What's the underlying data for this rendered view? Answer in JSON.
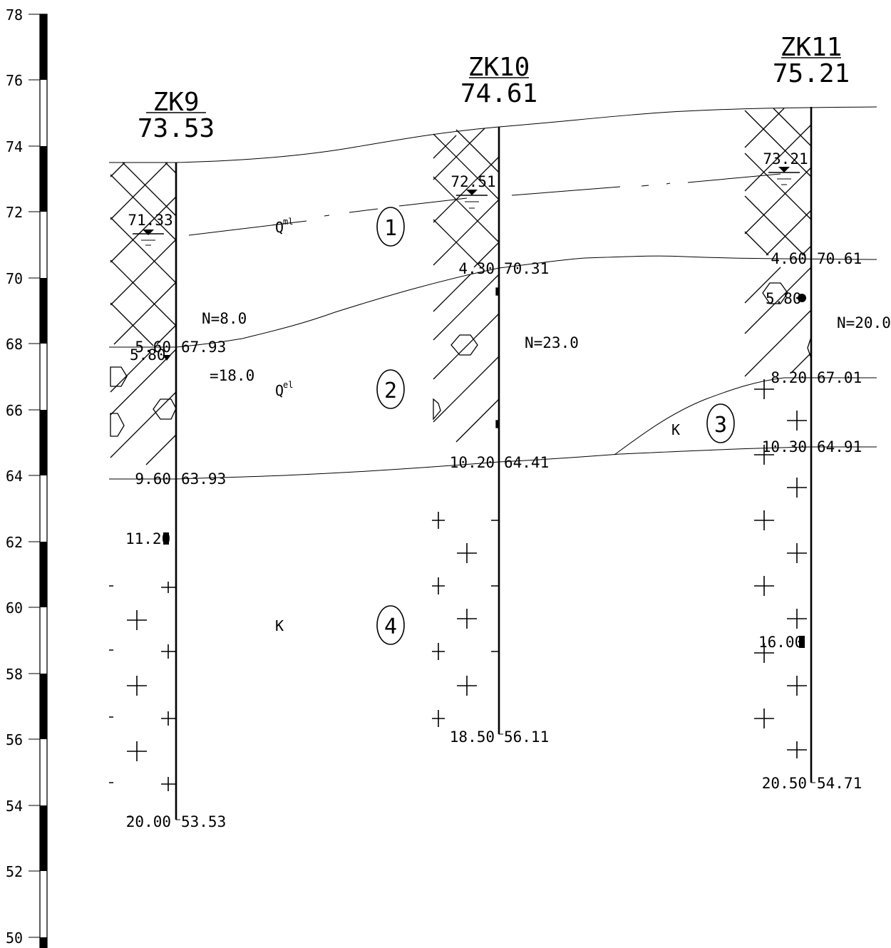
{
  "scale": {
    "ticks": [
      "78",
      "76",
      "74",
      "72",
      "70",
      "68",
      "66",
      "64",
      "62",
      "60",
      "58",
      "56",
      "54",
      "52",
      "50"
    ]
  },
  "boreholes": [
    {
      "id": "ZK9",
      "elevation": "73.53",
      "layers": [
        {
          "depth": "5.60",
          "elev": "67.93"
        },
        {
          "depth": "9.60",
          "elev": "63.93"
        },
        {
          "depth": "20.00",
          "elev": "53.53"
        }
      ],
      "water_level": "71.33",
      "samples": [
        "5.80",
        "11.20"
      ]
    },
    {
      "id": "ZK10",
      "elevation": "74.61",
      "layers": [
        {
          "depth": "4.30",
          "elev": "70.31"
        },
        {
          "depth": "10.20",
          "elev": "64.41"
        },
        {
          "depth": "18.50",
          "elev": "56.11"
        }
      ],
      "water_level": "72.51"
    },
    {
      "id": "ZK11",
      "elevation": "75.21",
      "layers": [
        {
          "depth": "4.60",
          "elev": "70.61"
        },
        {
          "depth": "8.20",
          "elev": "67.01"
        },
        {
          "depth": "10.30",
          "elev": "64.91"
        },
        {
          "depth": "20.50",
          "elev": "54.71"
        }
      ],
      "water_level": "73.21",
      "samples": [
        "5.80",
        "16.00"
      ]
    }
  ],
  "spt": [
    "N=8.0",
    "=18.0",
    "N=23.0",
    "N=20.0"
  ],
  "strata": [
    {
      "number": "1",
      "code": "Q",
      "sup": "ml"
    },
    {
      "number": "2",
      "code": "Q",
      "sup": "el"
    },
    {
      "number": "3",
      "code": "K"
    },
    {
      "number": "4",
      "code": "K"
    }
  ]
}
